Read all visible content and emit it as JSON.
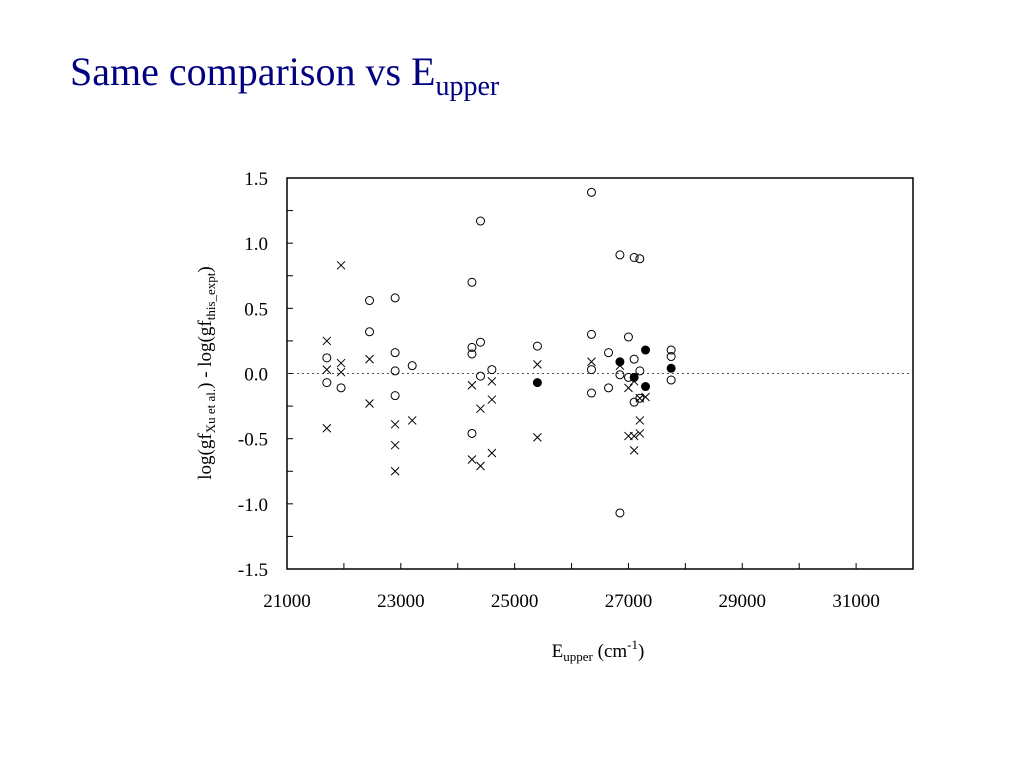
{
  "slide": {
    "title_main": "Same comparison vs E",
    "title_sub": "upper"
  },
  "chart_data": {
    "type": "scatter",
    "xlim": [
      21000,
      32000
    ],
    "ylim": [
      -1.5,
      1.5
    ],
    "x_ticks": [
      21000,
      23000,
      25000,
      27000,
      29000,
      31000
    ],
    "x_tick_labels": [
      "21000",
      "23000",
      "25000",
      "27000",
      "29000",
      "31000"
    ],
    "y_ticks": [
      1.5,
      1.0,
      0.5,
      0.0,
      -0.5,
      -1.0,
      -1.5
    ],
    "y_tick_labels": [
      "1.5",
      "1.0",
      "0.5",
      "0.0",
      "-0.5",
      "-1.0",
      "-1.5"
    ],
    "xlabel": {
      "main": "E",
      "sub": "upper",
      "unit_prefix": " (cm",
      "unit_sup": "-1",
      "unit_suffix": ")"
    },
    "ylabel": {
      "p1": "log(gf",
      "s1": "Xu et al.",
      "p2": ") - log(gf",
      "s2": "this_expt",
      "p3": ")"
    },
    "reference_line": 0.0,
    "grid": false,
    "series": [
      {
        "marker": "open-circle",
        "points": [
          [
            21700,
            0.12
          ],
          [
            21700,
            -0.07
          ],
          [
            21950,
            -0.11
          ],
          [
            22450,
            0.56
          ],
          [
            22450,
            0.32
          ],
          [
            22900,
            0.58
          ],
          [
            22900,
            0.16
          ],
          [
            22900,
            0.02
          ],
          [
            22900,
            -0.17
          ],
          [
            23200,
            0.06
          ],
          [
            24250,
            0.7
          ],
          [
            24250,
            0.2
          ],
          [
            24250,
            0.15
          ],
          [
            24250,
            -0.46
          ],
          [
            24400,
            1.17
          ],
          [
            24400,
            0.24
          ],
          [
            24400,
            -0.02
          ],
          [
            24600,
            0.03
          ],
          [
            25400,
            0.21
          ],
          [
            26350,
            1.39
          ],
          [
            26350,
            0.3
          ],
          [
            26350,
            0.03
          ],
          [
            26350,
            -0.15
          ],
          [
            26650,
            0.16
          ],
          [
            26650,
            -0.11
          ],
          [
            26850,
            0.91
          ],
          [
            26850,
            -0.01
          ],
          [
            26850,
            -1.07
          ],
          [
            27000,
            0.28
          ],
          [
            27000,
            -0.03
          ],
          [
            27100,
            0.89
          ],
          [
            27100,
            0.11
          ],
          [
            27100,
            -0.22
          ],
          [
            27200,
            0.88
          ],
          [
            27200,
            0.02
          ],
          [
            27200,
            -0.19
          ],
          [
            27750,
            0.18
          ],
          [
            27750,
            0.13
          ],
          [
            27750,
            -0.05
          ]
        ]
      },
      {
        "marker": "cross",
        "points": [
          [
            21700,
            0.25
          ],
          [
            21700,
            0.03
          ],
          [
            21700,
            -0.42
          ],
          [
            21950,
            0.83
          ],
          [
            21950,
            0.08
          ],
          [
            21950,
            0.01
          ],
          [
            22450,
            0.11
          ],
          [
            22450,
            -0.23
          ],
          [
            22900,
            -0.39
          ],
          [
            22900,
            -0.55
          ],
          [
            22900,
            -0.75
          ],
          [
            23200,
            -0.36
          ],
          [
            24250,
            -0.09
          ],
          [
            24250,
            -0.66
          ],
          [
            24400,
            -0.27
          ],
          [
            24400,
            -0.71
          ],
          [
            24600,
            -0.06
          ],
          [
            24600,
            -0.2
          ],
          [
            24600,
            -0.61
          ],
          [
            25400,
            0.07
          ],
          [
            25400,
            -0.49
          ],
          [
            26350,
            0.09
          ],
          [
            26850,
            0.06
          ],
          [
            27000,
            -0.11
          ],
          [
            27000,
            -0.48
          ],
          [
            27100,
            -0.06
          ],
          [
            27100,
            -0.48
          ],
          [
            27100,
            -0.59
          ],
          [
            27200,
            -0.19
          ],
          [
            27200,
            -0.36
          ],
          [
            27200,
            -0.46
          ],
          [
            27300,
            -0.18
          ]
        ]
      },
      {
        "marker": "filled-circle",
        "points": [
          [
            25400,
            -0.07
          ],
          [
            26850,
            0.09
          ],
          [
            27100,
            -0.03
          ],
          [
            27300,
            0.18
          ],
          [
            27300,
            -0.1
          ],
          [
            27750,
            0.04
          ]
        ]
      }
    ]
  }
}
